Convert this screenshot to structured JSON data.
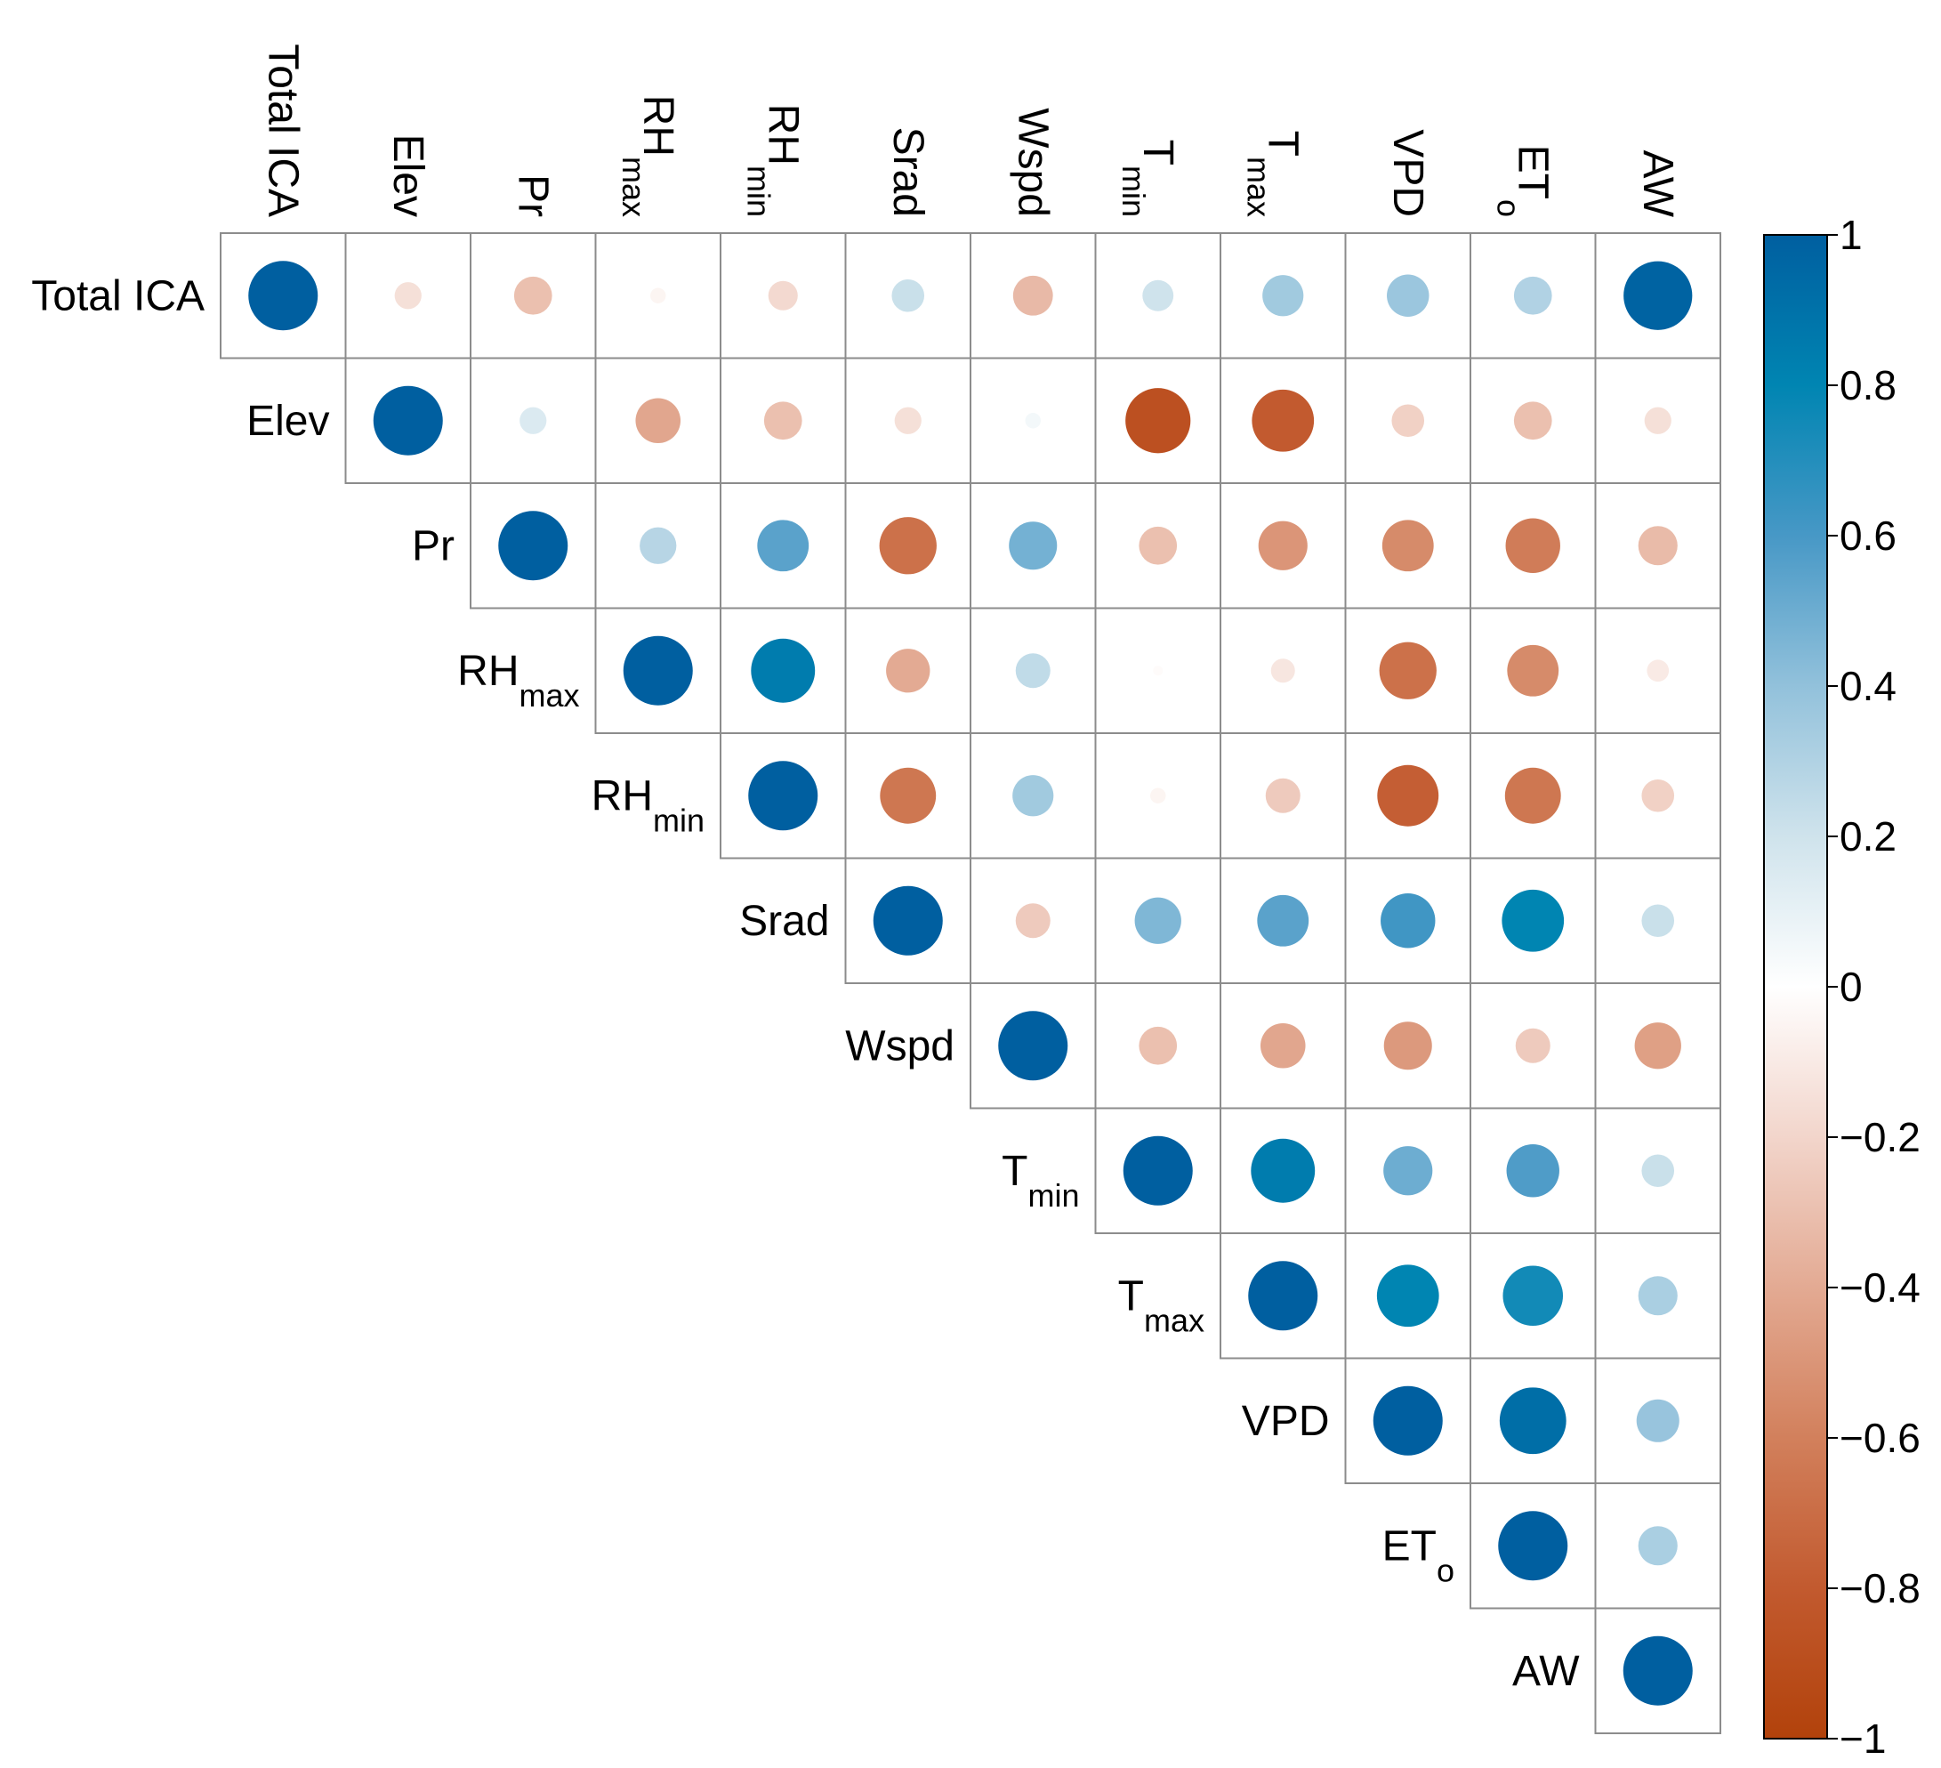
{
  "chart_data": {
    "type": "heatmap",
    "subtype": "correlation-upper-triangle-circles",
    "variables": [
      {
        "main": "Total ICA",
        "sub": ""
      },
      {
        "main": "Elev",
        "sub": ""
      },
      {
        "main": "Pr",
        "sub": ""
      },
      {
        "main": "RH",
        "sub": "max"
      },
      {
        "main": "RH",
        "sub": "min"
      },
      {
        "main": "Srad",
        "sub": ""
      },
      {
        "main": "Wspd",
        "sub": ""
      },
      {
        "main": "T",
        "sub": "min"
      },
      {
        "main": "T",
        "sub": "max"
      },
      {
        "main": "VPD",
        "sub": ""
      },
      {
        "main": "ET",
        "sub": "o"
      },
      {
        "main": "AW",
        "sub": ""
      }
    ],
    "upper_triangle_rows": [
      [
        1,
        -0.15,
        -0.3,
        -0.05,
        -0.18,
        0.22,
        -0.33,
        0.2,
        0.35,
        0.37,
        0.3,
        0.98
      ],
      [
        1,
        0.15,
        -0.42,
        -0.3,
        -0.15,
        0.05,
        -0.88,
        -0.8,
        -0.22,
        -0.3,
        -0.15
      ],
      [
        1,
        0.28,
        0.55,
        -0.68,
        0.48,
        -0.3,
        -0.5,
        -0.55,
        -0.62,
        -0.32
      ],
      [
        1,
        0.85,
        -0.4,
        0.25,
        -0.02,
        -0.12,
        -0.68,
        -0.55,
        -0.1
      ],
      [
        1,
        -0.65,
        0.35,
        -0.05,
        -0.25,
        -0.78,
        -0.65,
        -0.22
      ],
      [
        1,
        -0.25,
        0.45,
        0.55,
        0.62,
        0.8,
        0.22
      ],
      [
        1,
        -0.3,
        -0.42,
        -0.48,
        -0.25,
        -0.45
      ],
      [
        1,
        0.85,
        0.5,
        0.58,
        0.22
      ],
      [
        1,
        0.8,
        0.75,
        0.32
      ],
      [
        1,
        0.92,
        0.38
      ],
      [
        1,
        0.32
      ],
      [
        1
      ]
    ],
    "colorbar": {
      "ticks": [
        "1",
        "0.8",
        "0.6",
        "0.4",
        "0.2",
        "0",
        "−0.2",
        "−0.4",
        "−0.6",
        "−0.8",
        "−1"
      ],
      "range": [
        -1,
        1
      ],
      "colors": {
        "negative": "#B2420B",
        "zero": "#FFFFFF",
        "positive": "#005FA0"
      }
    }
  }
}
